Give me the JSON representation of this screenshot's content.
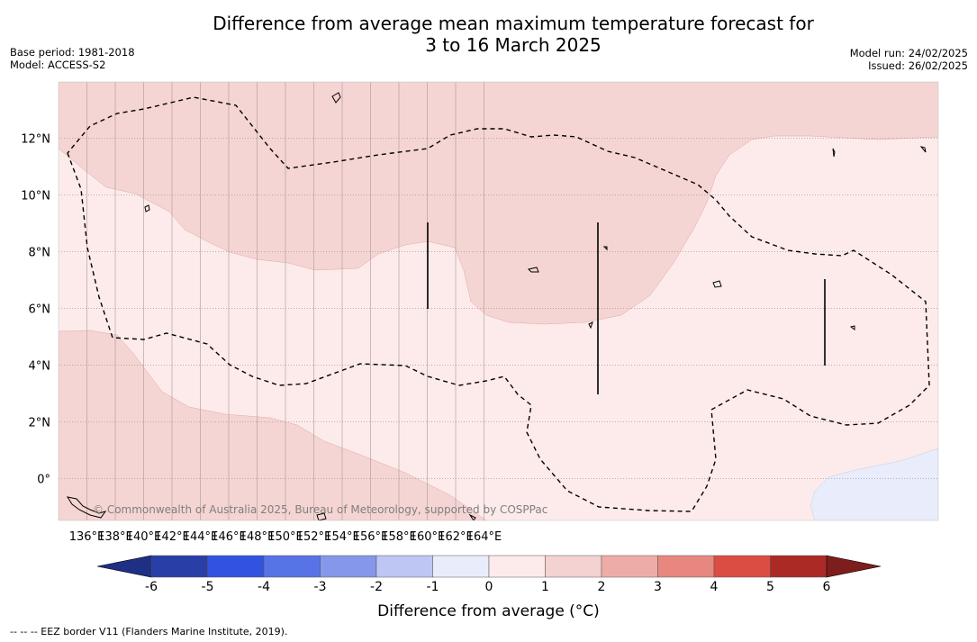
{
  "title_line1": "Difference from average mean maximum temperature forecast for",
  "title_line2": "3 to 16 March 2025",
  "meta_left": {
    "base_period": "Base period: 1981-2018",
    "model": "Model: ACCESS-S2"
  },
  "meta_right": {
    "model_run": "Model run: 24/02/2025",
    "issued": "Issued: 26/02/2025"
  },
  "credit": "© Commonwealth of Australia 2025, Bureau of Meteorology, supported by COSPPac",
  "footnote": "--  --  -- EEZ border V11 (Flanders Marine Institute, 2019).",
  "colorbar": {
    "title": "Difference from average (°C)",
    "ticks": [
      "-6",
      "-5",
      "-4",
      "-3",
      "-2",
      "-1",
      "0",
      "1",
      "2",
      "3",
      "4",
      "5",
      "6"
    ],
    "colors": [
      "#2a3ea8",
      "#3252e0",
      "#5873e6",
      "#8597ea",
      "#bec7f3",
      "#e9ecfb",
      "#fcebea",
      "#f3d2d1",
      "#eeaca8",
      "#e8877f",
      "#db4d42",
      "#ab2a26"
    ],
    "under_color": "#1f2f86",
    "over_color": "#7d1e1c"
  },
  "map": {
    "lon_labels": [
      "136°E",
      "138°E",
      "140°E",
      "142°E",
      "144°E",
      "146°E",
      "148°E",
      "150°E",
      "152°E",
      "154°E",
      "156°E",
      "158°E",
      "160°E",
      "162°E",
      "164°E"
    ],
    "lat_labels": [
      "12°N",
      "10°N",
      "8°N",
      "6°N",
      "4°N",
      "2°N",
      "0°"
    ],
    "bg_color": "#fcebea",
    "warm_color": "#f5d5d3",
    "cool_color": "#e9ecfb"
  }
}
